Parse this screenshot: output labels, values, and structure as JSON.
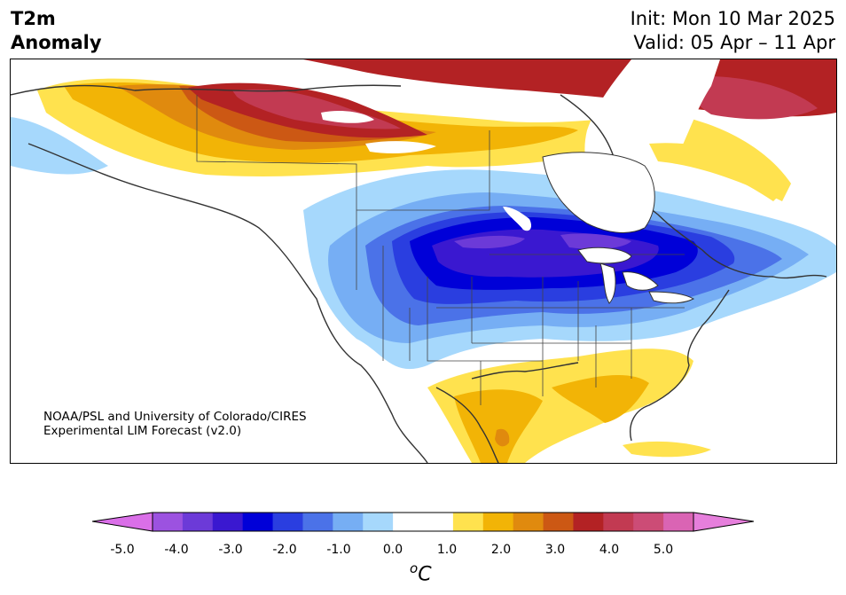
{
  "title": {
    "left_line1": "T2m",
    "left_line2": "Anomaly",
    "init": "Init: Mon 10 Mar 2025",
    "valid": "Valid: 05 Apr – 11 Apr"
  },
  "credit": {
    "line1": "NOAA/PSL and University of Colorado/CIRES",
    "line2": "Experimental LIM Forecast (v2.0)"
  },
  "colorbar": {
    "ticks": [
      "-5.0",
      "-4.0",
      "-3.0",
      "-2.0",
      "-1.0",
      "0.0",
      "1.0",
      "2.0",
      "3.0",
      "4.0",
      "5.0"
    ],
    "unit_sup": "o",
    "unit": "C",
    "colors": [
      "#da6fe8",
      "#9c52e0",
      "#6c3ad8",
      "#3a18d0",
      "#0000d8",
      "#2a3ee0",
      "#4b72e8",
      "#76aef4",
      "#a6d8fc",
      "#ffffff",
      "#ffffff",
      "#ffe24e",
      "#f2b406",
      "#e08a0e",
      "#cc5814",
      "#b32224",
      "#c23a52",
      "#cc4c76",
      "#da64b4",
      "#e67fdc"
    ]
  },
  "legend_colors": {
    "cold_extreme": "#6c3ad8",
    "cold_strong": "#0000d8",
    "cold": "#4b72e8",
    "cool": "#a6d8fc",
    "warm": "#ffe24e",
    "warmer": "#f2b406",
    "hot": "#cc5814",
    "very_hot": "#b32224",
    "extreme_hot": "#cc4c76"
  }
}
